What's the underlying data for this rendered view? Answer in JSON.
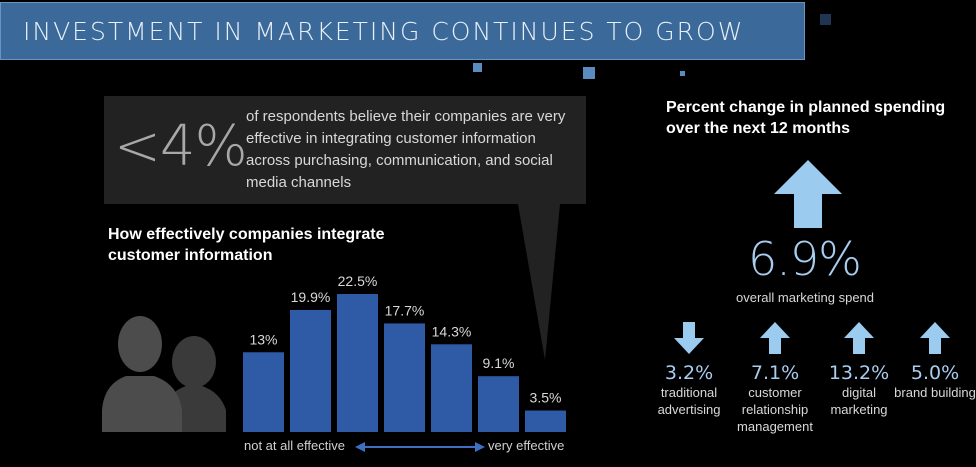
{
  "header": {
    "title": "INVESTMENT IN MARKETING CONTINUES TO GROW"
  },
  "callout": {
    "stat": "<4%",
    "text": "of respondents believe their companies are very effective in integrating customer information across purchasing, communication, and social media channels"
  },
  "chart_data": {
    "type": "bar",
    "title": "How effectively companies integrate customer information",
    "categories": [
      "1",
      "2",
      "3",
      "4",
      "5",
      "6",
      "7"
    ],
    "values": [
      13,
      19.9,
      22.5,
      17.7,
      14.3,
      9.1,
      3.5
    ],
    "value_labels": [
      "13%",
      "19.9%",
      "22.5%",
      "17.7%",
      "14.3%",
      "9.1%",
      "3.5%"
    ],
    "x_axis": {
      "left_label": "not at all effective",
      "right_label": "very effective"
    },
    "ylim": [
      0,
      22.5
    ],
    "color": "#2f5aa6"
  },
  "spending": {
    "title": "Percent change in planned spending over the next 12 months",
    "overall": {
      "value": "6.9%",
      "caption": "overall marketing spend",
      "direction": "up"
    },
    "items": [
      {
        "value": "3.2%",
        "label": "traditional advertising",
        "direction": "down"
      },
      {
        "value": "7.1%",
        "label": "customer relationship management",
        "direction": "up"
      },
      {
        "value": "13.2%",
        "label": "digital marketing",
        "direction": "up"
      },
      {
        "value": "5.0%",
        "label": "brand building",
        "direction": "up"
      }
    ],
    "arrow_color": "#9ccbf0"
  }
}
